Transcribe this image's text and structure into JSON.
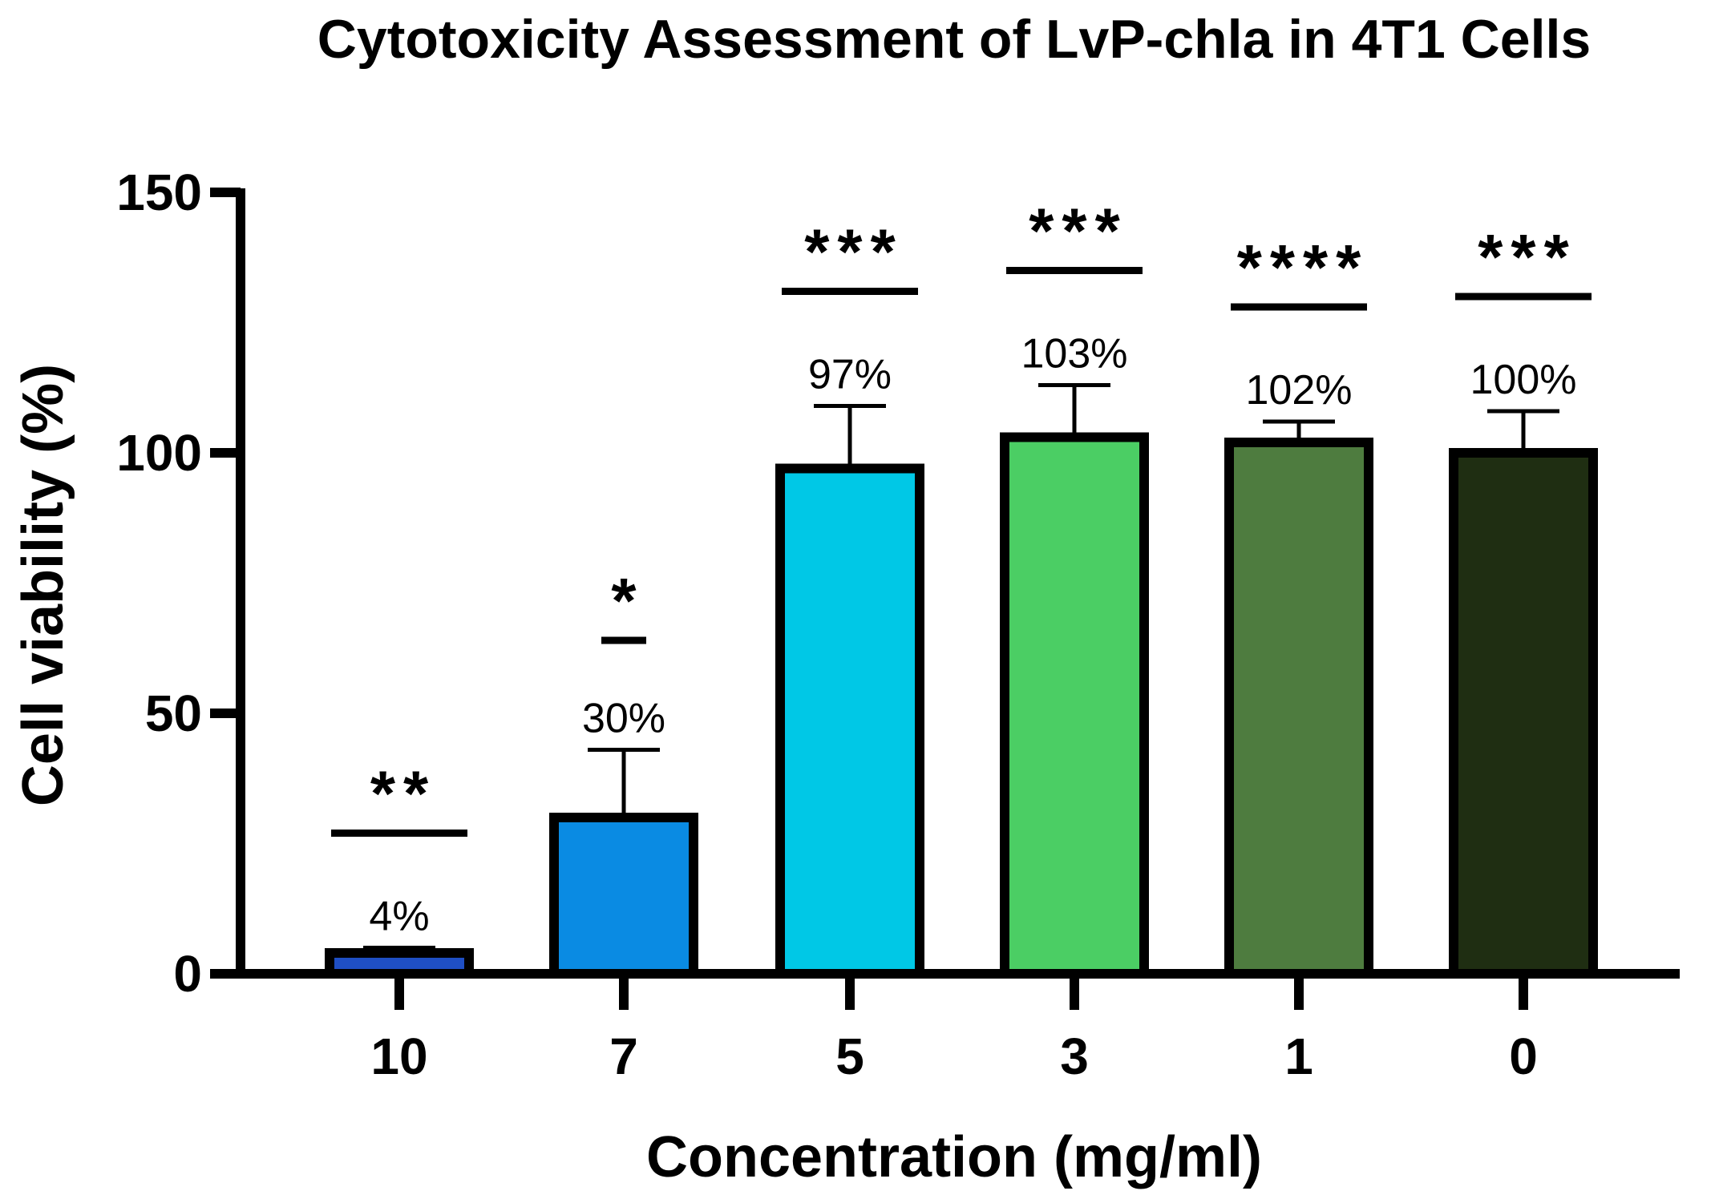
{
  "chart_data": {
    "type": "bar",
    "title": "Cytotoxicity Assessment of LvP-chla in 4T1 Cells",
    "xlabel": "Concentration (mg/ml)",
    "ylabel": "Cell viability (%)",
    "ylim": [
      0,
      150
    ],
    "yticks": [
      0,
      50,
      100,
      150
    ],
    "categories": [
      "10",
      "7",
      "5",
      "3",
      "1",
      "0"
    ],
    "values": [
      4,
      30,
      97,
      103,
      102,
      100
    ],
    "error_upper": [
      5,
      43,
      109,
      113,
      106,
      108
    ],
    "data_labels": [
      "4%",
      "30%",
      "97%",
      "103%",
      "102%",
      "100%"
    ],
    "significance": [
      {
        "label": "**",
        "level": 27,
        "bracket": "wide"
      },
      {
        "label": "*",
        "level": 64,
        "bracket": "short"
      },
      {
        "label": "***",
        "level": 131,
        "bracket": "wide"
      },
      {
        "label": "***",
        "level": 135,
        "bracket": "wide"
      },
      {
        "label": "****",
        "level": 128,
        "bracket": "wide"
      },
      {
        "label": "***",
        "level": 130,
        "bracket": "wide"
      }
    ],
    "colors": [
      "#1f4fc4",
      "#0a8be3",
      "#00c8e6",
      "#4bce64",
      "#4e7c3f",
      "#1f2e12"
    ],
    "grid": false,
    "legend": "none"
  }
}
